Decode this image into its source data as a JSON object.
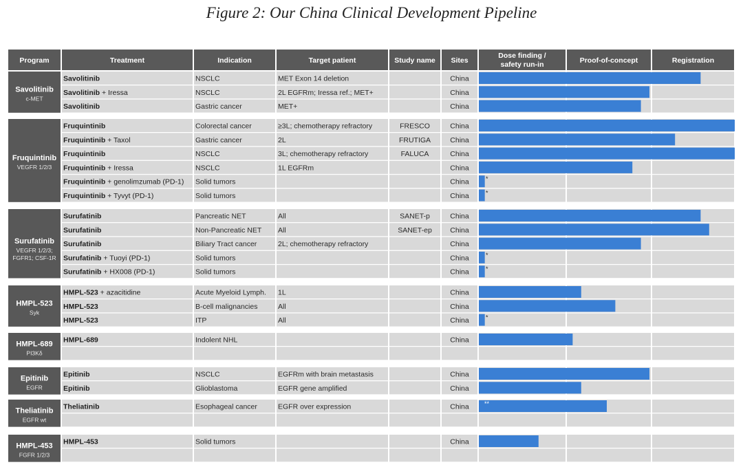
{
  "title": "Figure 2: Our China Clinical Development Pipeline",
  "columns": [
    "Program",
    "Treatment",
    "Indication",
    "Target patient",
    "Study name",
    "Sites",
    "Dose finding / safety run-in",
    "Proof-of-concept",
    "Registration"
  ],
  "colors": {
    "header": "#595959",
    "program": "#585858",
    "row_bg": "#d9d9d9",
    "bar": "#3a7fd4",
    "page": "#ffffff"
  },
  "chart_data": {
    "type": "table",
    "stage_scale": "bar extent in stage units: 0-1 Dose finding / safety run-in, 1-2 Proof-of-concept, 2-3 Registration",
    "groups": [
      {
        "program": "Savolitinib",
        "target": "c-MET",
        "rows": [
          {
            "treatment": "Savolitinib",
            "indication": "NSCLC",
            "target_patient": "MET Exon 14 deletion",
            "study": "",
            "site": "China",
            "progress": 2.6,
            "note": ""
          },
          {
            "treatment": "Savolitinib + Iressa",
            "indication": "NSCLC",
            "target_patient": "2L EGFRm; Iressa ref.; MET+",
            "study": "",
            "site": "China",
            "progress": 2.0,
            "note": ""
          },
          {
            "treatment": "Savolitinib",
            "indication": "Gastric cancer",
            "target_patient": "MET+",
            "study": "",
            "site": "China",
            "progress": 1.9,
            "note": ""
          }
        ]
      },
      {
        "program": "Fruquintinib",
        "target": "VEGFR 1/2/3",
        "rows": [
          {
            "treatment": "Fruquintinib",
            "indication": "Colorectal cancer",
            "target_patient": "≥3L; chemotherapy refractory",
            "study": "FRESCO",
            "site": "China",
            "progress": 3.0,
            "note": ""
          },
          {
            "treatment": "Fruquintinib + Taxol",
            "indication": "Gastric cancer",
            "target_patient": "2L",
            "study": "FRUTIGA",
            "site": "China",
            "progress": 2.3,
            "note": ""
          },
          {
            "treatment": "Fruquintinib",
            "indication": "NSCLC",
            "target_patient": "3L; chemotherapy refractory",
            "study": "FALUCA",
            "site": "China",
            "progress": 3.0,
            "note": ""
          },
          {
            "treatment": "Fruquintinib + Iressa",
            "indication": "NSCLC",
            "target_patient": "1L EGFRm",
            "study": "",
            "site": "China",
            "progress": 1.8,
            "note": ""
          },
          {
            "treatment": "Fruquintinib + genolimzumab (PD-1)",
            "indication": "Solid tumors",
            "target_patient": "",
            "study": "",
            "site": "China",
            "progress": 0.07,
            "note": "*"
          },
          {
            "treatment": "Fruquintinib + Tyvyt (PD-1)",
            "indication": "Solid tumors",
            "target_patient": "",
            "study": "",
            "site": "China",
            "progress": 0.07,
            "note": "*"
          }
        ]
      },
      {
        "program": "Surufatinib",
        "target": "VEGFR 1/2/3; FGFR1; CSF-1R",
        "rows": [
          {
            "treatment": "Surufatinib",
            "indication": "Pancreatic NET",
            "target_patient": "All",
            "study": "SANET-p",
            "site": "China",
            "progress": 2.6,
            "note": ""
          },
          {
            "treatment": "Surufatinib",
            "indication": "Non-Pancreatic NET",
            "target_patient": "All",
            "study": "SANET-ep",
            "site": "China",
            "progress": 2.7,
            "note": ""
          },
          {
            "treatment": "Surufatinib",
            "indication": "Biliary Tract cancer",
            "target_patient": "2L; chemotherapy refractory",
            "study": "",
            "site": "China",
            "progress": 1.9,
            "note": ""
          },
          {
            "treatment": "Surufatinib + Tuoyi (PD-1)",
            "indication": "Solid tumors",
            "target_patient": "",
            "study": "",
            "site": "China",
            "progress": 0.07,
            "note": "*"
          },
          {
            "treatment": "Surufatinib + HX008 (PD-1)",
            "indication": "Solid tumors",
            "target_patient": "",
            "study": "",
            "site": "China",
            "progress": 0.07,
            "note": "*"
          }
        ]
      },
      {
        "program": "HMPL-523",
        "target": "Syk",
        "rows": [
          {
            "treatment": "HMPL-523 + azacitidine",
            "indication": "Acute Myeloid Lymph.",
            "target_patient": "1L",
            "study": "",
            "site": "China",
            "progress": 1.2,
            "note": ""
          },
          {
            "treatment": "HMPL-523",
            "indication": "B-cell malignancies",
            "target_patient": "All",
            "study": "",
            "site": "China",
            "progress": 1.6,
            "note": ""
          },
          {
            "treatment": "HMPL-523",
            "indication": "ITP",
            "target_patient": "All",
            "study": "",
            "site": "China",
            "progress": 0.07,
            "note": "*"
          }
        ]
      },
      {
        "program": "HMPL-689",
        "target": "PI3Kδ",
        "rows": [
          {
            "treatment": "HMPL-689",
            "indication": "Indolent NHL",
            "target_patient": "",
            "study": "",
            "site": "China",
            "progress": 1.1,
            "note": ""
          },
          {
            "treatment": "",
            "indication": "",
            "target_patient": "",
            "study": "",
            "site": "",
            "progress": 0,
            "note": ""
          }
        ]
      },
      {
        "program": "Epitinib",
        "target": "EGFR",
        "rows": [
          {
            "treatment": "Epitinib",
            "indication": "NSCLC",
            "target_patient": "EGFRm with brain metastasis",
            "study": "",
            "site": "China",
            "progress": 2.0,
            "note": ""
          },
          {
            "treatment": "Epitinib",
            "indication": "Glioblastoma",
            "target_patient": "EGFR gene amplified",
            "study": "",
            "site": "China",
            "progress": 1.2,
            "note": ""
          }
        ]
      },
      {
        "program": "Theliatinib",
        "target": "EGFR wt",
        "rows": [
          {
            "treatment": "Theliatinib",
            "indication": "Esophageal cancer",
            "target_patient": "EGFR over expression",
            "study": "",
            "site": "China",
            "progress": 1.5,
            "note": "**"
          },
          {
            "treatment": "",
            "indication": "",
            "target_patient": "",
            "study": "",
            "site": "",
            "progress": 0,
            "note": ""
          }
        ]
      },
      {
        "program": "HMPL-453",
        "target": "FGFR 1/2/3",
        "rows": [
          {
            "treatment": "HMPL-453",
            "indication": "Solid tumors",
            "target_patient": "",
            "study": "",
            "site": "China",
            "progress": 0.7,
            "note": ""
          },
          {
            "treatment": "",
            "indication": "",
            "target_patient": "",
            "study": "",
            "site": "",
            "progress": 0,
            "note": ""
          }
        ]
      }
    ]
  }
}
